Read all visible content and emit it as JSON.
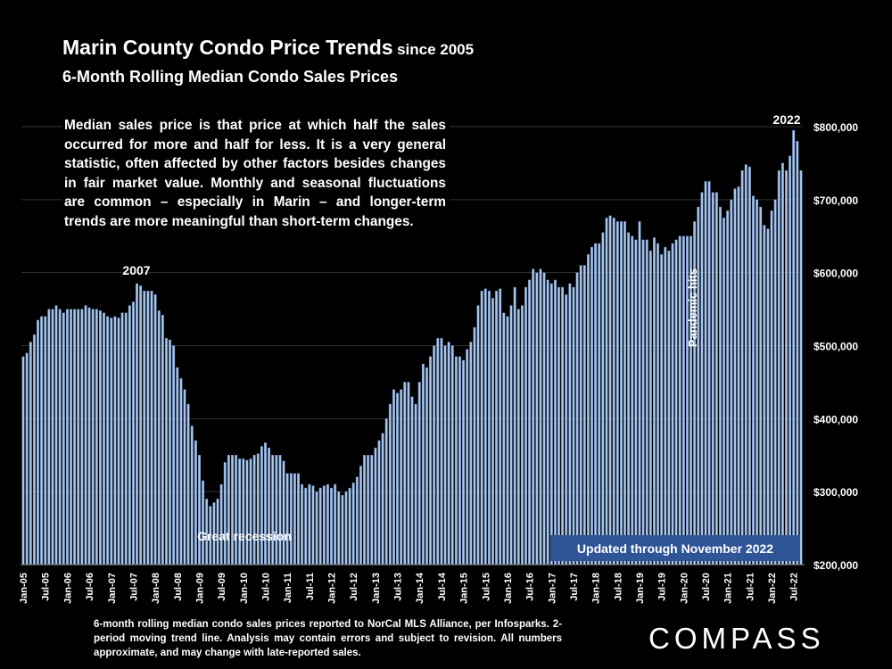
{
  "header": {
    "title": "Marin County Condo Price Trends",
    "title_suffix": "since 2005",
    "subtitle": "6-Month Rolling Median Condo Sales Prices"
  },
  "description": "Median sales price is that price at which half the sales occurred for more and half for less. It is a very general statistic, often affected by other factors besides changes in fair market value. Monthly and seasonal fluctuations are common – especially in Marin – and longer-term trends are more meaningful than short-term changes.",
  "footnote": "6-month rolling median condo sales prices reported to NorCal MLS Alliance, per Infosparks. 2-period moving trend line. Analysis may contain errors and subject to revision. All numbers approximate, and may change with late-reported sales.",
  "logo": "COMPASS",
  "colors": {
    "background": "#000000",
    "bar": "#a9c6ea",
    "bar_edge": "#5e7fb5",
    "badge": "#2f5597",
    "grid": "#333333"
  },
  "chart_data": {
    "type": "bar",
    "title": "Marin County Condo Price Trends since 2005",
    "subtitle": "6-Month Rolling Median Condo Sales Prices",
    "ylim": [
      200000,
      800000
    ],
    "yticks": [
      200000,
      300000,
      400000,
      500000,
      600000,
      700000,
      800000
    ],
    "ytick_labels": [
      "$200,000",
      "$300,000",
      "$400,000",
      "$500,000",
      "$600,000",
      "$700,000",
      "$800,000"
    ],
    "xtick_labels": [
      "Jan-05",
      "Jul-05",
      "Jan-06",
      "Jul-06",
      "Jan-07",
      "Jul-07",
      "Jan-08",
      "Jul-08",
      "Jan-09",
      "Jul-09",
      "Jan-10",
      "Jul-10",
      "Jan-11",
      "Jul-11",
      "Jan-12",
      "Jul-12",
      "Jan-13",
      "Jul-13",
      "Jan-14",
      "Jul-14",
      "Jan-15",
      "Jul-15",
      "Jan-16",
      "Jul-16",
      "Jan-17",
      "Jul-17",
      "Jan-18",
      "Jul-18",
      "Jan-19",
      "Jul-19",
      "Jan-20",
      "Jul-20",
      "Jan-21",
      "Jul-21",
      "Jan-22",
      "Jul-22"
    ],
    "first_month": "Jan-05",
    "last_month": "Nov-22",
    "values": [
      485000,
      490000,
      505000,
      515000,
      535000,
      540000,
      540000,
      550000,
      550000,
      555000,
      550000,
      545000,
      550000,
      550000,
      550000,
      550000,
      550000,
      555000,
      552000,
      550000,
      550000,
      548000,
      545000,
      540000,
      538000,
      540000,
      538000,
      545000,
      545000,
      555000,
      560000,
      585000,
      582000,
      575000,
      575000,
      575000,
      570000,
      548000,
      542000,
      510000,
      508000,
      500000,
      470000,
      455000,
      440000,
      420000,
      390000,
      370000,
      350000,
      315000,
      290000,
      280000,
      285000,
      290000,
      310000,
      340000,
      350000,
      350000,
      350000,
      345000,
      345000,
      343000,
      345000,
      350000,
      352000,
      362000,
      367000,
      360000,
      350000,
      350000,
      350000,
      342000,
      325000,
      325000,
      325000,
      325000,
      310000,
      305000,
      310000,
      308000,
      300000,
      305000,
      308000,
      310000,
      305000,
      310000,
      300000,
      295000,
      300000,
      305000,
      312000,
      320000,
      335000,
      350000,
      350000,
      350000,
      360000,
      370000,
      380000,
      400000,
      420000,
      440000,
      435000,
      440000,
      450000,
      450000,
      430000,
      420000,
      450000,
      475000,
      470000,
      485000,
      500000,
      510000,
      510000,
      500000,
      505000,
      500000,
      485000,
      485000,
      480000,
      495000,
      505000,
      525000,
      555000,
      575000,
      578000,
      575000,
      565000,
      575000,
      578000,
      545000,
      540000,
      555000,
      580000,
      550000,
      555000,
      580000,
      590000,
      605000,
      600000,
      605000,
      600000,
      590000,
      585000,
      590000,
      580000,
      580000,
      570000,
      585000,
      580000,
      600000,
      610000,
      610000,
      625000,
      635000,
      640000,
      640000,
      655000,
      675000,
      678000,
      675000,
      670000,
      670000,
      670000,
      655000,
      650000,
      645000,
      670000,
      645000,
      645000,
      630000,
      648000,
      640000,
      625000,
      635000,
      630000,
      640000,
      645000,
      650000,
      650000,
      650000,
      650000,
      670000,
      690000,
      710000,
      725000,
      725000,
      710000,
      710000,
      690000,
      675000,
      685000,
      700000,
      715000,
      718000,
      740000,
      748000,
      745000,
      705000,
      700000,
      690000,
      665000,
      660000,
      685000,
      700000,
      740000,
      750000,
      740000,
      760000,
      795000,
      780000,
      740000
    ]
  },
  "annotations": {
    "y2007": "2007",
    "y2022": "2022",
    "recession": "Great recession",
    "pandemic": "Pandemic hits",
    "updated": "Updated through November 2022"
  }
}
